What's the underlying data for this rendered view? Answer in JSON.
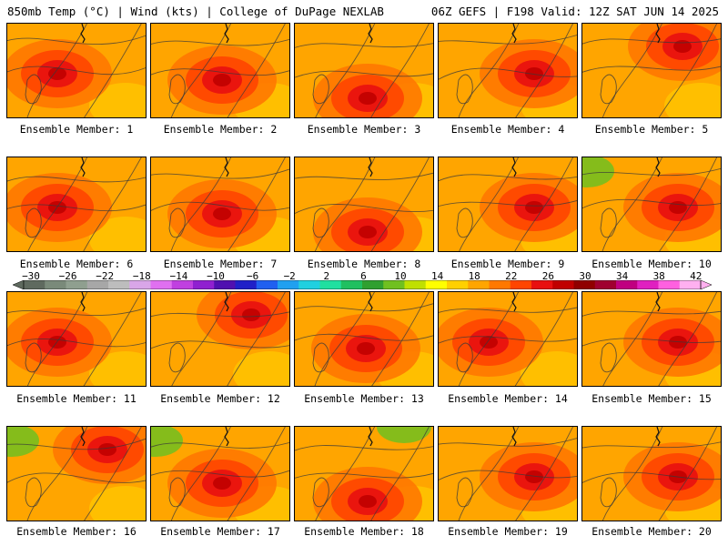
{
  "header": {
    "left": "850mb Temp (°C) | Wind (kts) | College of DuPage NEXLAB",
    "right": "06Z GEFS | F198 Valid: 12Z SAT JUN 14 2025"
  },
  "panels": [
    {
      "label": "Ensemble Member: 1",
      "hot": "center-left"
    },
    {
      "label": "Ensemble Member: 2",
      "hot": "center"
    },
    {
      "label": "Ensemble Member: 3",
      "hot": "lower-center"
    },
    {
      "label": "Ensemble Member: 4",
      "hot": "center-right"
    },
    {
      "label": "Ensemble Member: 5",
      "hot": "upper-right"
    },
    {
      "label": "Ensemble Member: 6",
      "hot": "center-left"
    },
    {
      "label": "Ensemble Member: 7",
      "hot": "center"
    },
    {
      "label": "Ensemble Member: 8",
      "hot": "lower-center"
    },
    {
      "label": "Ensemble Member: 9",
      "hot": "center-right"
    },
    {
      "label": "Ensemble Member: 10",
      "hot": "center-right"
    },
    {
      "label": "Ensemble Member: 11",
      "hot": "center-left"
    },
    {
      "label": "Ensemble Member: 12",
      "hot": "upper-right"
    },
    {
      "label": "Ensemble Member: 13",
      "hot": "center"
    },
    {
      "label": "Ensemble Member: 14",
      "hot": "center-left"
    },
    {
      "label": "Ensemble Member: 15",
      "hot": "center-right"
    },
    {
      "label": "Ensemble Member: 16",
      "hot": "upper-right"
    },
    {
      "label": "Ensemble Member: 17",
      "hot": "center"
    },
    {
      "label": "Ensemble Member: 18",
      "hot": "lower-center"
    },
    {
      "label": "Ensemble Member: 19",
      "hot": "center-right"
    },
    {
      "label": "Ensemble Member: 20",
      "hot": "center-right"
    }
  ],
  "colorbar": {
    "ticks": [
      "−30",
      "−26",
      "−22",
      "−18",
      "−14",
      "−10",
      "−6",
      "−2",
      "2",
      "6",
      "10",
      "14",
      "18",
      "22",
      "26",
      "30",
      "34",
      "38",
      "42"
    ],
    "colors": [
      "#5f6a5f",
      "#7a8a7a",
      "#8f9f8f",
      "#a7a7a7",
      "#bdbdbd",
      "#d9a6e8",
      "#e070f0",
      "#c040e0",
      "#9020d0",
      "#5010b0",
      "#2020c8",
      "#2060f0",
      "#20a0f0",
      "#20d0e0",
      "#20e0a0",
      "#20c060",
      "#30a030",
      "#70c020",
      "#c0e000",
      "#ffff00",
      "#ffd000",
      "#ffa500",
      "#ff7800",
      "#ff4500",
      "#e81010",
      "#c00000",
      "#900000",
      "#a00030",
      "#c00080",
      "#e020c0",
      "#ff60e0",
      "#ffb0f0"
    ]
  },
  "colors": {
    "cool": "#ffa500",
    "warm": "#ff7800",
    "hot": "#ff4500",
    "hotter": "#e81010",
    "hottest": "#c00000",
    "green": "#70c020",
    "yellow": "#ffd000"
  }
}
